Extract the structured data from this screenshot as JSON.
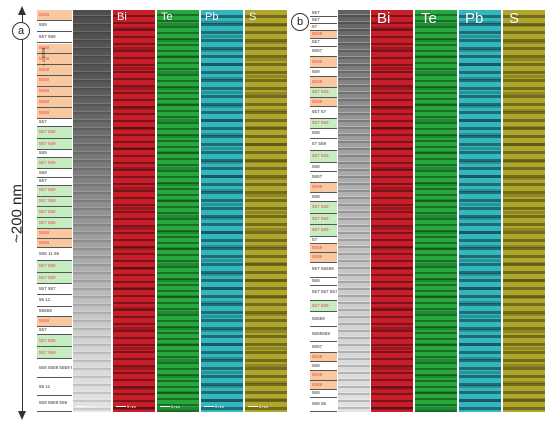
{
  "axis": {
    "label": "~200 nm"
  },
  "panel_a": {
    "letter": "a",
    "rotated_label": "4 x 5559",
    "element_labels": [
      "Bi",
      "Te",
      "Pb",
      "S"
    ],
    "scale_bars": [
      "2 nm",
      "5 nm",
      "5 nm",
      "5 nm",
      "5 nm"
    ],
    "layers": [
      {
        "t": "5559",
        "c": "orange",
        "h": 9
      },
      {
        "t": "559",
        "c": "white",
        "h": 9
      },
      {
        "t": "557 559",
        "c": "white",
        "h": 10
      },
      {
        "t": "5559",
        "c": "orange",
        "h": 9
      },
      {
        "t": "5559",
        "c": "orange",
        "h": 9
      },
      {
        "t": "5559",
        "c": "orange",
        "h": 9
      },
      {
        "t": "5559",
        "c": "orange",
        "h": 9
      },
      {
        "t": "5559",
        "c": "orange",
        "h": 9
      },
      {
        "t": "5559",
        "c": "orange",
        "h": 9
      },
      {
        "t": "5559",
        "c": "orange",
        "h": 9
      },
      {
        "t": "557",
        "c": "white",
        "h": 7
      },
      {
        "t": "557 559",
        "c": "green",
        "h": 10
      },
      {
        "t": "557 559",
        "c": "green",
        "h": 9
      },
      {
        "t": "559",
        "c": "white",
        "h": 7
      },
      {
        "t": "557 559",
        "c": "green",
        "h": 9
      },
      {
        "t": "559",
        "c": "white",
        "h": 7
      },
      {
        "t": "557",
        "c": "white",
        "h": 7
      },
      {
        "t": "557 559",
        "c": "green",
        "h": 9
      },
      {
        "t": "557 559",
        "c": "green",
        "h": 9
      },
      {
        "t": "557 559",
        "c": "green",
        "h": 9
      },
      {
        "t": "557 559",
        "c": "green",
        "h": 9
      },
      {
        "t": "5559",
        "c": "orange",
        "h": 8
      },
      {
        "t": "5559",
        "c": "orange",
        "h": 8
      },
      {
        "t": "555 11 55",
        "c": "white",
        "h": 11
      },
      {
        "t": "557 559",
        "c": "green",
        "h": 10
      },
      {
        "t": "557 559",
        "c": "green",
        "h": 9
      },
      {
        "t": "557 557",
        "c": "white",
        "h": 9
      },
      {
        "t": "55 11",
        "c": "white",
        "h": 10
      },
      {
        "t": "55559",
        "c": "white",
        "h": 9
      },
      {
        "t": "5559",
        "c": "orange",
        "h": 8
      },
      {
        "t": "557",
        "c": "white",
        "h": 7
      },
      {
        "t": "557 559",
        "c": "green",
        "h": 10
      },
      {
        "t": "557 559",
        "c": "green",
        "h": 10
      },
      {
        "t": "559 5559 5559 559",
        "c": "white",
        "h": 16
      },
      {
        "t": "55 11",
        "c": "white",
        "h": 15
      },
      {
        "t": "559 5559 559",
        "c": "white",
        "h": 13
      }
    ]
  },
  "panel_b": {
    "letter": "b",
    "element_labels": [
      "Bi",
      "Te",
      "Pb",
      "S"
    ],
    "layers": [
      {
        "t": "557",
        "c": "white",
        "h": 6
      },
      {
        "t": "557",
        "c": "white",
        "h": 6
      },
      {
        "t": "57",
        "c": "white",
        "h": 6
      },
      {
        "t": "5559",
        "c": "orange",
        "h": 7
      },
      {
        "t": "557",
        "c": "white",
        "h": 7
      },
      {
        "t": "5557",
        "c": "white",
        "h": 9
      },
      {
        "t": "5559",
        "c": "orange",
        "h": 9
      },
      {
        "t": "559",
        "c": "white",
        "h": 8
      },
      {
        "t": "5559",
        "c": "orange",
        "h": 9
      },
      {
        "t": "557 559",
        "c": "green",
        "h": 9
      },
      {
        "t": "5559",
        "c": "orange",
        "h": 8
      },
      {
        "t": "557 57",
        "c": "white",
        "h": 10
      },
      {
        "t": "557 559",
        "c": "green",
        "h": 9
      },
      {
        "t": "559",
        "c": "white",
        "h": 8
      },
      {
        "t": "57 559",
        "c": "white",
        "h": 11
      },
      {
        "t": "557 559",
        "c": "green",
        "h": 10
      },
      {
        "t": "559",
        "c": "white",
        "h": 8
      },
      {
        "t": "5557",
        "c": "white",
        "h": 9
      },
      {
        "t": "5559",
        "c": "orange",
        "h": 9
      },
      {
        "t": "559",
        "c": "white",
        "h": 8
      },
      {
        "t": "557 559",
        "c": "green",
        "h": 10
      },
      {
        "t": "557 559",
        "c": "green",
        "h": 10
      },
      {
        "t": "557 559",
        "c": "green",
        "h": 10
      },
      {
        "t": "57",
        "c": "white",
        "h": 6
      },
      {
        "t": "5559",
        "c": "orange",
        "h": 8
      },
      {
        "t": "5559",
        "c": "orange",
        "h": 8
      },
      {
        "t": "557 55559",
        "c": "white",
        "h": 13
      },
      {
        "t": "559",
        "c": "white",
        "h": 7
      },
      {
        "t": "557 557 557",
        "c": "white",
        "h": 13
      },
      {
        "t": "557 559",
        "c": "green",
        "h": 10
      },
      {
        "t": "55559",
        "c": "white",
        "h": 13
      },
      {
        "t": "5555559",
        "c": "white",
        "h": 13
      },
      {
        "t": "5557",
        "c": "white",
        "h": 9
      },
      {
        "t": "5559",
        "c": "orange",
        "h": 8
      },
      {
        "t": "559",
        "c": "white",
        "h": 8
      },
      {
        "t": "5559",
        "c": "orange",
        "h": 8
      },
      {
        "t": "5559",
        "c": "orange",
        "h": 8
      },
      {
        "t": "559",
        "c": "white",
        "h": 7
      },
      {
        "t": "559 55",
        "c": "white",
        "h": 12
      }
    ]
  }
}
